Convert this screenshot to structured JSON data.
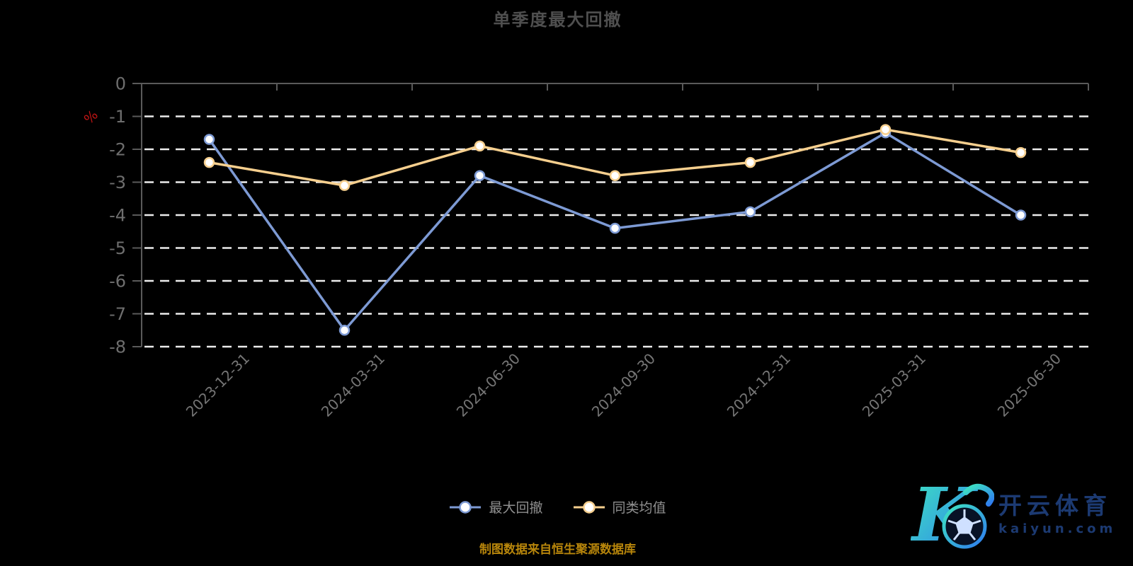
{
  "title": "单季度最大回撤",
  "chart_data": {
    "type": "line",
    "title": "单季度最大回撤",
    "categories": [
      "2023-12-31",
      "2024-03-31",
      "2024-06-30",
      "2024-09-30",
      "2024-12-31",
      "2025-03-31",
      "2025-06-30"
    ],
    "series": [
      {
        "name": "最大回撤",
        "color": "#7d9ad4",
        "values": [
          -1.7,
          -7.5,
          -2.8,
          -4.4,
          -3.9,
          -1.5,
          -4.0
        ]
      },
      {
        "name": "同类均值",
        "color": "#f6cf8e",
        "values": [
          -2.4,
          -3.1,
          -1.9,
          -2.8,
          -2.4,
          -1.4,
          -2.1
        ]
      }
    ],
    "xlabel": "",
    "ylabel": "%",
    "ylabel_color": "#c01414",
    "ylim": [
      -8,
      0
    ],
    "ytick_step": 1,
    "yticks": [
      "0",
      "-1",
      "-2",
      "-3",
      "-4",
      "-5",
      "-6",
      "-7",
      "-8"
    ],
    "grid": true,
    "gridline_style": "white-dashed",
    "legend_position": "bottom",
    "marker": "circle-white-fill"
  },
  "legend": {
    "items": [
      {
        "label": "最大回撤"
      },
      {
        "label": "同类均值"
      }
    ]
  },
  "footer": {
    "source_note": "制图数据来自恒生聚源数据库",
    "color": "#b8860b"
  },
  "logo": {
    "brand": "开云体育",
    "domain": "kaiyun.com",
    "text_color": "#1c3a72",
    "gradient_start": "#3ee6c0",
    "gradient_end": "#2f7bf0"
  },
  "colors": {
    "axis_line": "#5a5a5a",
    "tick_label": "#6e6e6e",
    "date_label": "#757575",
    "gridline": "#ececec",
    "background": "#000000"
  }
}
